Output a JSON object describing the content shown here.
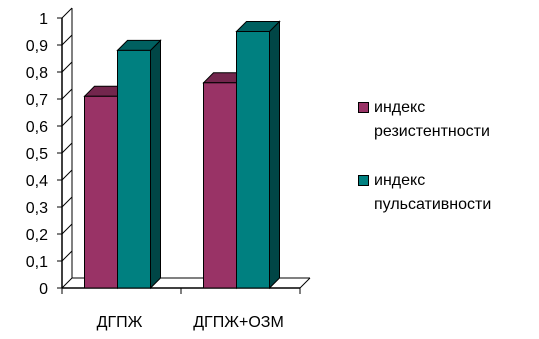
{
  "chart_data": {
    "type": "bar",
    "categories": [
      "ДГПЖ",
      "ДГПЖ+ОЗМ"
    ],
    "series": [
      {
        "name": "индекс резистентности",
        "values": [
          0.71,
          0.76
        ],
        "color": "#993366"
      },
      {
        "name": "индекс пульсативности",
        "values": [
          0.88,
          0.95
        ],
        "color": "#008080"
      }
    ],
    "ylim": [
      0,
      1
    ],
    "yticks": [
      "0",
      "0,1",
      "0,2",
      "0,3",
      "0,4",
      "0,5",
      "0,6",
      "0,7",
      "0,8",
      "0,9",
      "1"
    ],
    "grid": false,
    "legend_position": "right",
    "style": "3d-column",
    "title": "",
    "xlabel": "",
    "ylabel": ""
  }
}
